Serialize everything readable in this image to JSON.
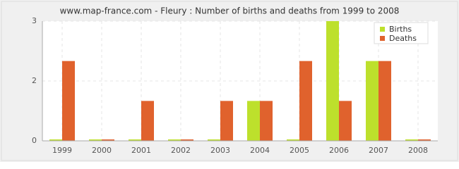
{
  "chart_data": {
    "type": "bar",
    "title": "www.map-france.com - Fleury : Number of births and deaths from 1999 to 2008",
    "categories": [
      "1999",
      "2000",
      "2001",
      "2002",
      "2003",
      "2004",
      "2005",
      "2006",
      "2007",
      "2008"
    ],
    "series": [
      {
        "name": "Births",
        "color": "#bde02c",
        "values": [
          0,
          0,
          0,
          0,
          0,
          1,
          0,
          3,
          2,
          0
        ]
      },
      {
        "name": "Deaths",
        "color": "#e0622d",
        "values": [
          2,
          0,
          1,
          0,
          1,
          1,
          2,
          1,
          2,
          0
        ]
      }
    ],
    "ylim": [
      0,
      3
    ],
    "yticks": [
      0,
      {
        "value": 1.5,
        "label": "2"
      },
      3
    ],
    "grid": true,
    "legend": "top-right"
  }
}
